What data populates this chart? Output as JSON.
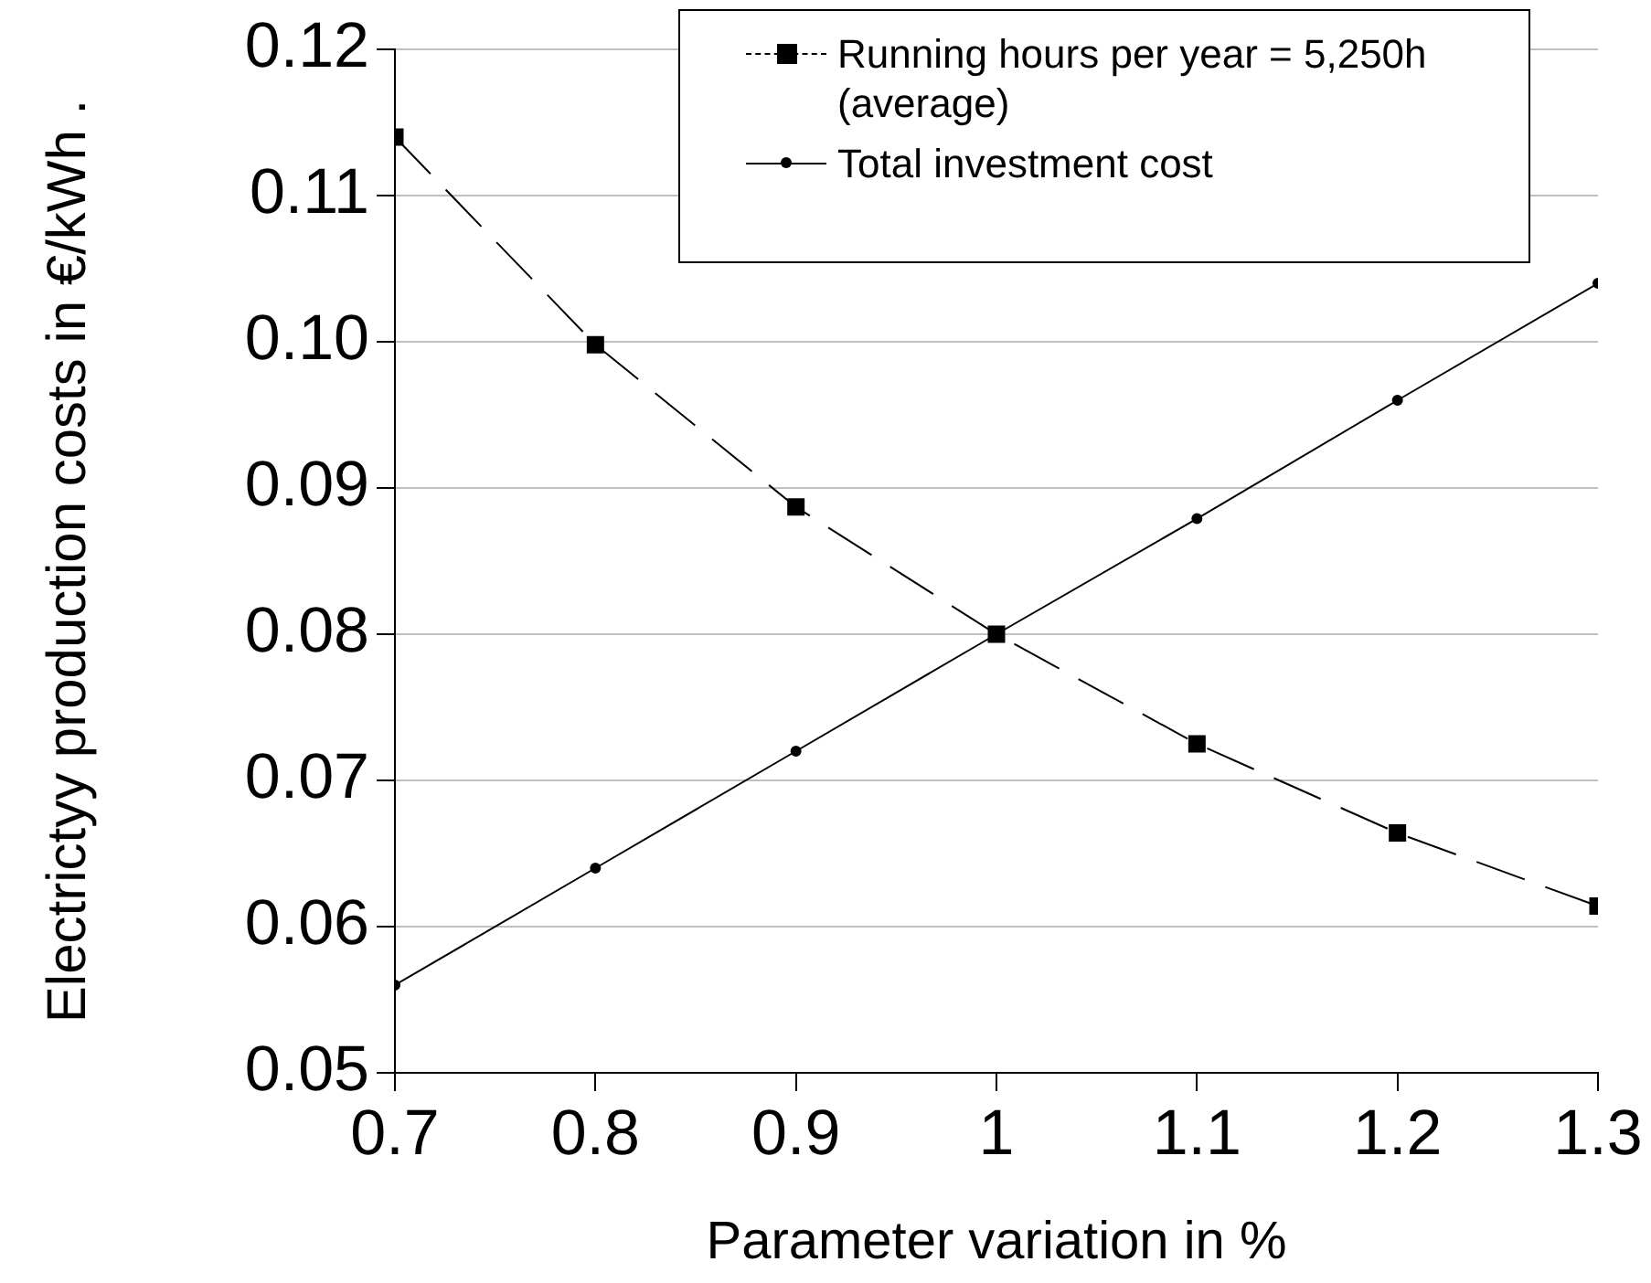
{
  "chart_data": {
    "type": "line",
    "xlabel": "Parameter variation in %",
    "ylabel": "Electrictyy production costs in €/kWh .",
    "x": [
      0.7,
      0.8,
      0.9,
      1,
      1.1,
      1.2,
      1.3
    ],
    "series": [
      {
        "name": "Running hours per year = 5,250h (average)",
        "color": "#000000",
        "marker": "square",
        "line_style": "dashed",
        "values": [
          0.114,
          0.0998,
          0.0887,
          0.08,
          0.0725,
          0.0664,
          0.0614
        ]
      },
      {
        "name": "Total investment cost",
        "color": "#000000",
        "marker": "circle",
        "line_style": "solid",
        "values": [
          0.056,
          0.064,
          0.072,
          0.08,
          0.0879,
          0.096,
          0.104
        ]
      }
    ],
    "xlim": [
      0.7,
      1.3
    ],
    "xticks": [
      0.7,
      0.8,
      0.9,
      1,
      1.1,
      1.2,
      1.3
    ],
    "ylim": [
      0.05,
      0.12
    ],
    "yticks": [
      {
        "value": 0.05,
        "label": "0.05"
      },
      {
        "value": 0.06,
        "label": "0.06"
      },
      {
        "value": 0.07,
        "label": "0.07"
      },
      {
        "value": 0.08,
        "label": "0.08"
      },
      {
        "value": 0.09,
        "label": "0.09"
      },
      {
        "value": 0.1,
        "label": "0.10"
      },
      {
        "value": 0.11,
        "label": "0.11"
      },
      {
        "value": 0.12,
        "label": "0.12"
      }
    ],
    "grid": "y",
    "legend": "top right"
  }
}
